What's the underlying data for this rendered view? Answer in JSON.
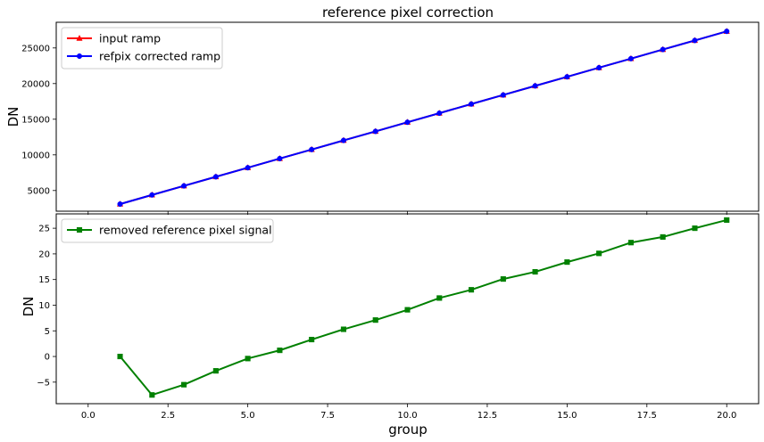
{
  "chart_data": [
    {
      "type": "line",
      "title": "reference pixel correction",
      "xlabel": "",
      "ylabel": "DN",
      "xlim": [
        -1.0,
        21.0
      ],
      "ylim": [
        2100,
        28600
      ],
      "xticks": [
        0.0,
        2.5,
        5.0,
        7.5,
        10.0,
        12.5,
        15.0,
        17.5,
        20.0
      ],
      "xtick_labels_shown": false,
      "yticks": [
        5000,
        10000,
        15000,
        20000,
        25000
      ],
      "ytick_labels": [
        "5000",
        "10000",
        "15000",
        "20000",
        "25000"
      ],
      "grid": false,
      "legend_position": "top-left",
      "x": [
        1,
        2,
        3,
        4,
        5,
        6,
        7,
        8,
        9,
        10,
        11,
        12,
        13,
        14,
        15,
        16,
        17,
        18,
        19,
        20
      ],
      "series": [
        {
          "name": "input ramp",
          "color": "#ff0000",
          "marker": "triangle",
          "values": [
            3100,
            4380,
            5650,
            6930,
            8200,
            9480,
            10750,
            12030,
            13300,
            14580,
            15850,
            17130,
            18400,
            19680,
            20950,
            22230,
            23500,
            24780,
            26050,
            27330
          ]
        },
        {
          "name": "refpix corrected ramp",
          "color": "#0000ff",
          "marker": "circle",
          "values": [
            3100,
            4380,
            5650,
            6930,
            8200,
            9480,
            10750,
            12030,
            13300,
            14580,
            15850,
            17130,
            18400,
            19680,
            20950,
            22230,
            23500,
            24780,
            26050,
            27330
          ]
        }
      ]
    },
    {
      "type": "line",
      "title": "",
      "xlabel": "group",
      "ylabel": "DN",
      "xlim": [
        -1.0,
        21.0
      ],
      "ylim": [
        -9.2,
        27.8
      ],
      "xticks": [
        0.0,
        2.5,
        5.0,
        7.5,
        10.0,
        12.5,
        15.0,
        17.5,
        20.0
      ],
      "xtick_labels": [
        "0.0",
        "2.5",
        "5.0",
        "7.5",
        "10.0",
        "12.5",
        "15.0",
        "17.5",
        "20.0"
      ],
      "yticks": [
        -5,
        0,
        5,
        10,
        15,
        20,
        25
      ],
      "ytick_labels": [
        "−5",
        "0",
        "5",
        "10",
        "15",
        "20",
        "25"
      ],
      "grid": false,
      "legend_position": "top-left",
      "x": [
        1,
        2,
        3,
        4,
        5,
        6,
        7,
        8,
        9,
        10,
        11,
        12,
        13,
        14,
        15,
        16,
        17,
        18,
        19,
        20
      ],
      "series": [
        {
          "name": "removed reference pixel signal",
          "color": "#008000",
          "marker": "square",
          "values": [
            0.0,
            -7.5,
            -5.5,
            -2.8,
            -0.4,
            1.2,
            3.3,
            5.3,
            7.1,
            9.1,
            11.4,
            13.0,
            15.1,
            16.5,
            18.4,
            20.1,
            22.2,
            23.3,
            25.0,
            26.6
          ]
        }
      ]
    }
  ]
}
